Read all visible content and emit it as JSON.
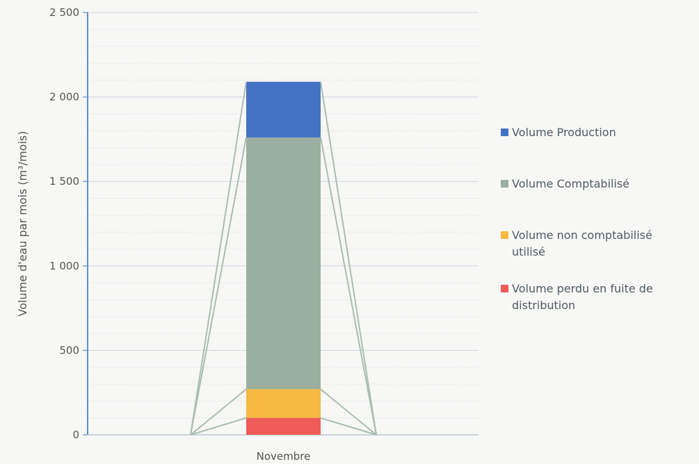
{
  "chart_data": {
    "type": "bar",
    "stacked": true,
    "categories": [
      "Novembre"
    ],
    "ylabel": "Volume d'eau par mois (m³/mois)",
    "ylim": [
      0,
      2500
    ],
    "yticks": [
      {
        "value": 0,
        "label": "0"
      },
      {
        "value": 500,
        "label": "500"
      },
      {
        "value": 1000,
        "label": "1 000"
      },
      {
        "value": 1500,
        "label": "1 500"
      },
      {
        "value": 2000,
        "label": "2 000"
      },
      {
        "value": 2500,
        "label": "2 500"
      }
    ],
    "grid": true,
    "legend_position": "right",
    "series": [
      {
        "name": "Volume Production",
        "color": "#4472c4",
        "start": 1760,
        "end": 2090
      },
      {
        "name": "Volume Comptabilisé",
        "color": "#9aaf9f",
        "start": 270,
        "end": 1760
      },
      {
        "name": "Volume non comptabilisé utilisé",
        "color": "#f6b942",
        "start": 100,
        "end": 270
      },
      {
        "name": "Volume perdu en fuite de distribution",
        "color": "#ef5b58",
        "start": 0,
        "end": 100
      }
    ],
    "legend": [
      {
        "lines": [
          "Volume Production"
        ],
        "color": "#4472c4"
      },
      {
        "lines": [
          "Volume Comptabilisé"
        ],
        "color": "#9aaf9f"
      },
      {
        "lines": [
          "Volume non comptabilisé",
          "utilisé"
        ],
        "color": "#f6b942"
      },
      {
        "lines": [
          "Volume perdu en fuite de",
          "distribution"
        ],
        "color": "#ef5b58"
      }
    ]
  }
}
